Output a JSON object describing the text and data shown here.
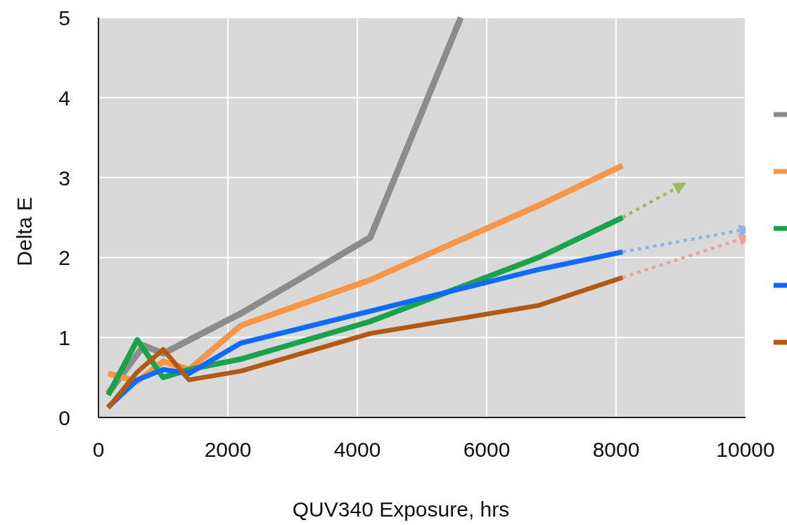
{
  "chart_data": {
    "type": "line",
    "xlabel": "QUV340 Exposure, hrs",
    "ylabel": "Delta E",
    "xlim": [
      0,
      10000
    ],
    "ylim": [
      0,
      5
    ],
    "xticks": [
      0,
      2000,
      4000,
      6000,
      8000,
      10000
    ],
    "yticks": [
      0,
      1,
      2,
      3,
      4,
      5
    ],
    "grid": true,
    "line_style": "solid",
    "marker": "none",
    "series": [
      {
        "color": "#8c8c8c",
        "x": [
          150,
          700,
          1000,
          2200,
          4200,
          5600
        ],
        "values": [
          0.3,
          0.9,
          0.8,
          1.3,
          2.25,
          5
        ]
      },
      {
        "color": "#f79646",
        "x": [
          150,
          600,
          1000,
          1400,
          2200,
          4200,
          6800,
          8100
        ],
        "values": [
          0.55,
          0.45,
          0.7,
          0.6,
          1.15,
          1.72,
          2.65,
          3.15
        ]
      },
      {
        "color": "#1aa34a",
        "x": [
          150,
          600,
          1000,
          1400,
          2200,
          4200,
          6800,
          8100
        ],
        "values": [
          0.28,
          0.97,
          0.5,
          0.6,
          0.73,
          1.2,
          2.0,
          2.5
        ]
      },
      {
        "color": "#0f6bff",
        "x": [
          150,
          600,
          1000,
          1400,
          2200,
          4200,
          6800,
          8100
        ],
        "values": [
          0.13,
          0.47,
          0.6,
          0.55,
          0.93,
          1.33,
          1.85,
          2.07
        ]
      },
      {
        "color": "#b45a10",
        "x": [
          150,
          600,
          1000,
          1400,
          2200,
          4200,
          6800,
          8100
        ],
        "values": [
          0.12,
          0.57,
          0.85,
          0.47,
          0.58,
          1.05,
          1.4,
          1.75
        ]
      },
      {
        "color": "#9bbb59",
        "line_style": "dotted",
        "x": [
          8100,
          9000
        ],
        "values": [
          2.5,
          2.9
        ]
      },
      {
        "color": "#8db4e2",
        "line_style": "dotted",
        "x": [
          8100,
          10000
        ],
        "values": [
          2.07,
          2.35
        ]
      },
      {
        "color": "#e6a0a0",
        "line_style": "dotted",
        "x": [
          8100,
          10000
        ],
        "values": [
          1.75,
          2.25
        ]
      }
    ]
  }
}
